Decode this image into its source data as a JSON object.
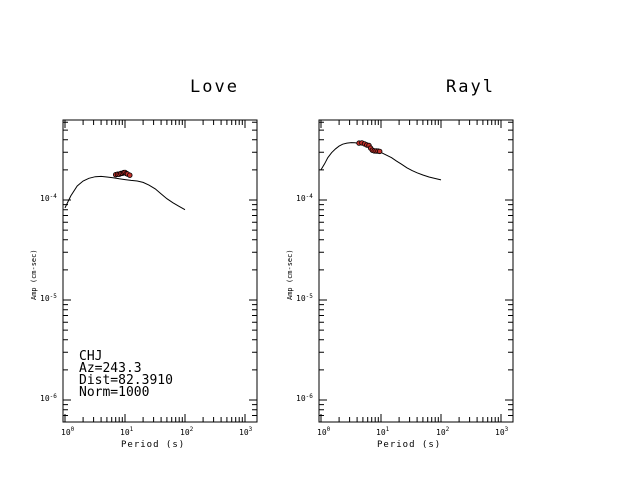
{
  "chart_data": [
    {
      "type": "line",
      "title": "Love",
      "xlabel": "Period (s)",
      "ylabel": "Amp (cm-sec)",
      "x_scale": "log",
      "y_scale": "log",
      "xlim": [
        1,
        1000
      ],
      "ylim": [
        6e-05,
        0.0006
      ],
      "x_ticks": [
        {
          "base": "10",
          "exp": "0"
        },
        {
          "base": "10",
          "exp": "1"
        },
        {
          "base": "10",
          "exp": "2"
        },
        {
          "base": "10",
          "exp": "3"
        }
      ],
      "y_ticks": [
        {
          "base": "10",
          "exp": "-4",
          "value": 0.0001
        },
        {
          "base": "10",
          "exp": "-5",
          "value": 1e-05
        },
        {
          "base": "10",
          "exp": "-6",
          "value": 1e-06
        }
      ],
      "series": [
        {
          "kind": "model-curve",
          "x": [
            1,
            1.25,
            1.6,
            2,
            2.5,
            3.2,
            4,
            5,
            6.3,
            8,
            10,
            12.6,
            16,
            20,
            25,
            32,
            40,
            50,
            63,
            80,
            100
          ],
          "y": [
            8.33e-05,
            0.00011,
            0.000138,
            0.000155,
            0.000165,
            0.000171,
            0.000172,
            0.00017,
            0.000167,
            0.000163,
            0.00016,
            0.000157,
            0.000155,
            0.00015,
            0.000141,
            0.000129,
            0.000115,
            0.000103,
            9.38e-05,
            8.63e-05,
            7.99e-05
          ]
        },
        {
          "kind": "observed",
          "color": "#c0302a",
          "x": [
            7,
            7.5,
            8,
            8.5,
            9,
            9.5,
            10,
            10.5,
            11,
            12
          ],
          "y": [
            0.000179,
            0.000181,
            0.000181,
            0.000184,
            0.000185,
            0.000188,
            0.000189,
            0.000184,
            0.000182,
            0.000177
          ]
        }
      ],
      "annotation": {
        "station": "CHJ",
        "az": "Az=243.3",
        "dist": "Dist=82.3910",
        "norm": "Norm=1000"
      }
    },
    {
      "type": "line",
      "title": "Rayl",
      "xlabel": "Period (s)",
      "ylabel": "Amp (cm-sec)",
      "x_scale": "log",
      "y_scale": "log",
      "xlim": [
        1,
        1000
      ],
      "ylim": [
        6e-05,
        0.0006
      ],
      "x_ticks": [
        {
          "base": "10",
          "exp": "0"
        },
        {
          "base": "10",
          "exp": "1"
        },
        {
          "base": "10",
          "exp": "2"
        },
        {
          "base": "10",
          "exp": "3"
        }
      ],
      "y_ticks": [
        {
          "base": "10",
          "exp": "-4",
          "value": 0.0001
        },
        {
          "base": "10",
          "exp": "-5",
          "value": 1e-05
        },
        {
          "base": "10",
          "exp": "-6",
          "value": 1e-06
        }
      ],
      "series": [
        {
          "kind": "model-curve",
          "x": [
            1,
            1.15,
            1.3,
            1.5,
            1.75,
            2,
            2.3,
            2.7,
            3.2,
            3.7,
            4.3,
            5,
            6,
            7,
            8,
            10,
            12,
            15,
            18,
            22,
            27,
            33,
            40,
            50,
            63,
            80,
            100
          ],
          "y": [
            0.000201,
            0.00023,
            0.000265,
            0.000297,
            0.000325,
            0.000346,
            0.000361,
            0.000371,
            0.000375,
            0.000373,
            0.000366,
            0.000357,
            0.000343,
            0.00033,
            0.000316,
            0.000299,
            0.000283,
            0.000265,
            0.000246,
            0.000228,
            0.00021,
            0.000197,
            0.000187,
            0.000178,
            0.00017,
            0.000164,
            0.000159
          ]
        },
        {
          "kind": "observed",
          "color": "#c0302a",
          "x": [
            4.3,
            4.8,
            5.3,
            5.8,
            6.3,
            6.7,
            7.2,
            7.7,
            8.3,
            8.9,
            9.5
          ],
          "y": [
            0.000371,
            0.000372,
            0.000364,
            0.000355,
            0.000351,
            0.00033,
            0.000315,
            0.00031,
            0.000309,
            0.000308,
            0.000306
          ]
        }
      ]
    }
  ]
}
